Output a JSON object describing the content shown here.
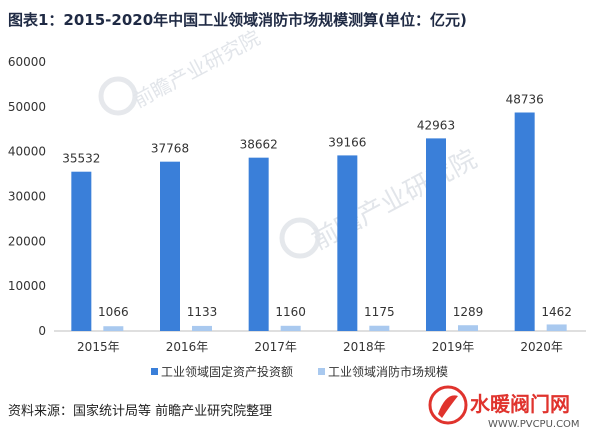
{
  "chart_data": {
    "type": "bar",
    "title": "图表1：2015-2020年中国工业领域消防市场规模测算(单位：亿元)",
    "categories": [
      "2015年",
      "2016年",
      "2017年",
      "2018年",
      "2019年",
      "2020年"
    ],
    "series": [
      {
        "name": "工业领域固定资产投资额",
        "values": [
          35532,
          37768,
          38662,
          39166,
          42963,
          48736
        ],
        "color": "#3a7fd9"
      },
      {
        "name": "工业领域消防市场规模",
        "values": [
          1066,
          1133,
          1160,
          1175,
          1289,
          1462
        ],
        "color": "#a9c9ef"
      }
    ],
    "ylim": [
      0,
      60000
    ],
    "yticks": [
      0,
      10000,
      20000,
      30000,
      40000,
      50000,
      60000
    ],
    "grid": false,
    "legend_position": "bottom"
  },
  "source": "资料来源：国家统计局等 前瞻产业研究院整理",
  "watermark": {
    "brand": "前瞻产业研究院"
  },
  "logo": {
    "text": "水暖阀门网",
    "url": "WWW.PVCPU.COM",
    "color": "#e0332d"
  }
}
